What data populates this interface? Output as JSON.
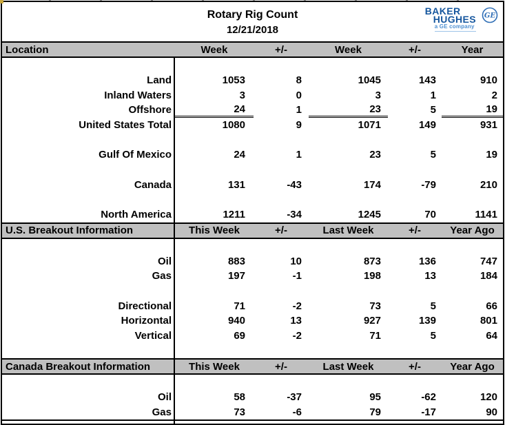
{
  "title": "Rotary Rig Count",
  "date": "12/21/2018",
  "logo": {
    "line1": "BAKER",
    "line2": "HUGHES",
    "tagline": "a GE company",
    "monogram": "GE",
    "color": "#15569E",
    "tagline_color": "#4D8FD1"
  },
  "colors": {
    "band_bg": "#C0C0C0",
    "border": "#000000",
    "text": "#000000",
    "corner_artifact": "#C9A63C"
  },
  "sections": [
    {
      "header": {
        "location": "Location",
        "cols": [
          "Week",
          "+/-",
          "Week",
          "+/-",
          "Year"
        ],
        "divider": false
      },
      "rows": [
        {
          "blank": true
        },
        {
          "label": "Land",
          "values": [
            "1053",
            "8",
            "1045",
            "143",
            "910"
          ]
        },
        {
          "label": "Inland Waters",
          "values": [
            "3",
            "0",
            "3",
            "1",
            "2"
          ]
        },
        {
          "label": "Offshore",
          "values": [
            "24",
            "1",
            "23",
            "5",
            "19"
          ],
          "underline": true
        },
        {
          "label": "United States Total",
          "values": [
            "1080",
            "9",
            "1071",
            "149",
            "931"
          ]
        },
        {
          "blank": true
        },
        {
          "label": "Gulf Of Mexico",
          "values": [
            "24",
            "1",
            "23",
            "5",
            "19"
          ]
        },
        {
          "blank": true
        },
        {
          "label": "Canada",
          "values": [
            "131",
            "-43",
            "174",
            "-79",
            "210"
          ]
        },
        {
          "blank": true
        },
        {
          "label": "North America",
          "values": [
            "1211",
            "-34",
            "1245",
            "70",
            "1141"
          ]
        }
      ]
    },
    {
      "header": {
        "location": "U.S. Breakout Information",
        "cols": [
          "This Week",
          "+/-",
          "Last Week",
          "+/-",
          "Year Ago"
        ],
        "divider": true
      },
      "rows": [
        {
          "blank": true
        },
        {
          "label": "Oil",
          "values": [
            "883",
            "10",
            "873",
            "136",
            "747"
          ]
        },
        {
          "label": "Gas",
          "values": [
            "197",
            "-1",
            "198",
            "13",
            "184"
          ]
        },
        {
          "blank": true
        },
        {
          "label": "Directional",
          "values": [
            "71",
            "-2",
            "73",
            "5",
            "66"
          ]
        },
        {
          "label": "Horizontal",
          "values": [
            "940",
            "13",
            "927",
            "139",
            "801"
          ]
        },
        {
          "label": "Vertical",
          "values": [
            "69",
            "-2",
            "71",
            "5",
            "64"
          ]
        },
        {
          "blank": true
        }
      ]
    },
    {
      "header": {
        "location": "Canada Breakout Information",
        "cols": [
          "This Week",
          "+/-",
          "Last Week",
          "+/-",
          "Year Ago"
        ],
        "divider": true
      },
      "rows": [
        {
          "blank": true
        },
        {
          "label": "Oil",
          "values": [
            "58",
            "-37",
            "95",
            "-62",
            "120"
          ]
        },
        {
          "label": "Gas",
          "values": [
            "73",
            "-6",
            "79",
            "-17",
            "90"
          ]
        }
      ]
    }
  ]
}
